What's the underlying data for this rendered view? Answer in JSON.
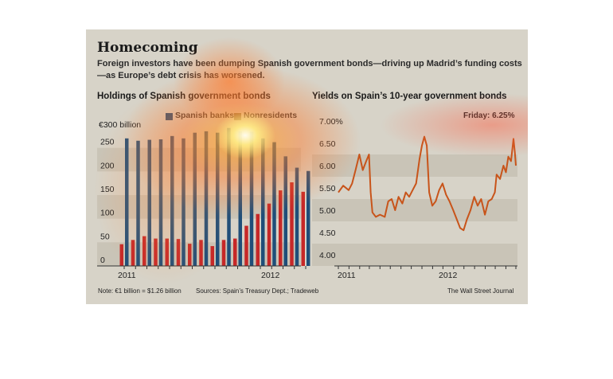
{
  "title": "Homecoming",
  "subtitle": "Foreign investors have been dumping Spanish government bonds—driving up Madrid’s funding costs—as Europe’s debt crisis has worsened.",
  "note": "Note: €1 billion = $1.26 billion",
  "sources": "Sources: Spain’s Treasury Dept.; Tradeweb",
  "credit": "The Wall Street Journal",
  "colors": {
    "spanish_banks": "#1f4e79",
    "nonresidents": "#c62828",
    "yield_line": "#c8541a",
    "panel": "#d7d3c8",
    "band": "#c9c4b7"
  },
  "chart_data": [
    {
      "type": "bar",
      "title": "Holdings of Spanish government bonds",
      "unit_prefix": "€300 billion",
      "yticks": [
        "0",
        "50",
        "100",
        "150",
        "200",
        "250"
      ],
      "ylim": [
        0,
        300
      ],
      "xticks": [
        "2011",
        "2012"
      ],
      "categories": [
        "2010-12",
        "2011-01",
        "2011-02",
        "2011-03",
        "2011-04",
        "2011-05",
        "2011-06",
        "2011-07",
        "2011-08",
        "2011-09",
        "2011-10",
        "2011-11",
        "2011-12",
        "2012-01",
        "2012-02",
        "2012-03",
        "2012-04"
      ],
      "series": [
        {
          "name": "Spanish banks",
          "values": [
            270,
            265,
            267,
            268,
            275,
            270,
            282,
            285,
            282,
            292,
            285,
            284,
            270,
            262,
            232,
            208,
            201
          ]
        },
        {
          "name": "Nonresidents",
          "values": [
            46,
            55,
            63,
            58,
            58,
            57,
            47,
            55,
            42,
            55,
            58,
            85,
            110,
            132,
            160,
            177,
            157
          ]
        }
      ],
      "grid": "bands",
      "legend": "top-right"
    },
    {
      "type": "line",
      "title": "Yields on Spain’s 10-year government bonds",
      "annotation": "Friday: 6.25%",
      "yticks": [
        "4.00",
        "4.50",
        "5.00",
        "5.50",
        "6.00",
        "6.50",
        "7.00%"
      ],
      "ylim": [
        3.75,
        7.25
      ],
      "xticks": [
        "2011",
        "2012"
      ],
      "x_range": [
        "2010-12-01",
        "2012-04-30"
      ],
      "series": [
        {
          "name": "",
          "points": [
            [
              "2010-12-01",
              5.4
            ],
            [
              "2010-12-15",
              5.55
            ],
            [
              "2010-12-31",
              5.45
            ],
            [
              "2011-01-10",
              5.6
            ],
            [
              "2011-01-20",
              5.9
            ],
            [
              "2011-01-31",
              6.25
            ],
            [
              "2011-02-10",
              5.9
            ],
            [
              "2011-02-20",
              6.1
            ],
            [
              "2011-02-28",
              6.25
            ],
            [
              "2011-03-05",
              5.4
            ],
            [
              "2011-03-10",
              4.95
            ],
            [
              "2011-03-20",
              4.85
            ],
            [
              "2011-04-01",
              4.9
            ],
            [
              "2011-04-15",
              4.85
            ],
            [
              "2011-04-25",
              5.2
            ],
            [
              "2011-05-05",
              5.25
            ],
            [
              "2011-05-15",
              5.0
            ],
            [
              "2011-05-25",
              5.3
            ],
            [
              "2011-06-05",
              5.15
            ],
            [
              "2011-06-15",
              5.4
            ],
            [
              "2011-06-25",
              5.3
            ],
            [
              "2011-07-05",
              5.45
            ],
            [
              "2011-07-15",
              5.6
            ],
            [
              "2011-07-25",
              6.15
            ],
            [
              "2011-08-01",
              6.45
            ],
            [
              "2011-08-08",
              6.65
            ],
            [
              "2011-08-15",
              6.45
            ],
            [
              "2011-08-22",
              5.4
            ],
            [
              "2011-08-31",
              5.1
            ],
            [
              "2011-09-10",
              5.2
            ],
            [
              "2011-09-20",
              5.45
            ],
            [
              "2011-09-30",
              5.6
            ],
            [
              "2011-10-10",
              5.35
            ],
            [
              "2011-10-20",
              5.2
            ],
            [
              "2011-10-31",
              5.0
            ],
            [
              "2011-11-10",
              4.8
            ],
            [
              "2011-11-20",
              4.6
            ],
            [
              "2011-11-30",
              4.55
            ],
            [
              "2011-12-10",
              4.8
            ],
            [
              "2011-12-20",
              5.0
            ],
            [
              "2011-12-31",
              5.3
            ],
            [
              "2012-01-10",
              5.1
            ],
            [
              "2012-01-20",
              5.25
            ],
            [
              "2012-01-31",
              4.9
            ],
            [
              "2012-02-10",
              5.2
            ],
            [
              "2012-02-20",
              5.25
            ],
            [
              "2012-02-29",
              5.4
            ],
            [
              "2012-03-05",
              5.8
            ],
            [
              "2012-03-15",
              5.7
            ],
            [
              "2012-03-25",
              6.0
            ],
            [
              "2012-04-01",
              5.85
            ],
            [
              "2012-04-08",
              6.2
            ],
            [
              "2012-04-16",
              6.1
            ],
            [
              "2012-04-23",
              6.6
            ],
            [
              "2012-04-27",
              6.3
            ],
            [
              "2012-04-30",
              6.0
            ]
          ]
        }
      ],
      "grid": "bands"
    }
  ]
}
